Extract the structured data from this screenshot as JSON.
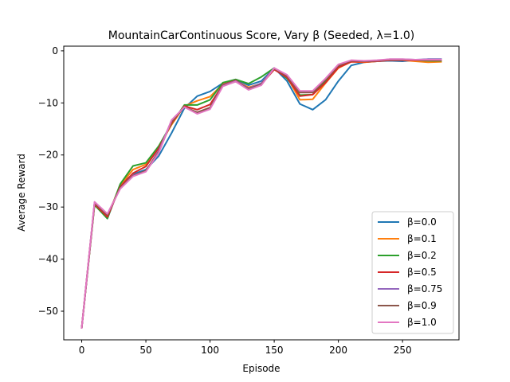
{
  "chart_data": {
    "type": "line",
    "title": "MountainCarContinuous Score, Vary β (Seeded, λ=1.0)",
    "xlabel": "Episode",
    "ylabel": "Average Reward",
    "xlim": [
      -14,
      294
    ],
    "ylim": [
      -55.5,
      0.9
    ],
    "xticks": [
      0,
      50,
      100,
      150,
      200,
      250
    ],
    "yticks": [
      0,
      -10,
      -20,
      -30,
      -40,
      -50
    ],
    "xtick_labels": [
      "0",
      "50",
      "100",
      "150",
      "200",
      "250"
    ],
    "ytick_labels": [
      "0",
      "−10",
      "−20",
      "−30",
      "−40",
      "−50"
    ],
    "grid": false,
    "legend_position": "lower-right",
    "x": [
      0,
      10,
      20,
      30,
      40,
      50,
      60,
      70,
      80,
      90,
      100,
      110,
      120,
      130,
      140,
      150,
      160,
      170,
      180,
      190,
      200,
      210,
      220,
      230,
      240,
      250,
      260,
      270,
      280
    ],
    "series": [
      {
        "name": "β=0.0",
        "color": "#1f77b4",
        "values": [
          -53.2,
          -29.3,
          -32.2,
          -25.7,
          -23.7,
          -22.8,
          -20.2,
          -15.8,
          -11.0,
          -8.7,
          -7.8,
          -6.2,
          -5.5,
          -6.6,
          -5.8,
          -3.3,
          -5.8,
          -10.2,
          -11.3,
          -9.4,
          -5.8,
          -2.8,
          -2.2,
          -2.0,
          -1.9,
          -2.0,
          -1.8,
          -1.6,
          -1.6
        ]
      },
      {
        "name": "β=0.1",
        "color": "#ff7f0e",
        "values": [
          -53.2,
          -29.3,
          -31.8,
          -25.8,
          -22.8,
          -21.8,
          -18.5,
          -14.2,
          -10.6,
          -9.6,
          -8.8,
          -6.4,
          -5.8,
          -7.0,
          -6.3,
          -3.4,
          -5.0,
          -9.4,
          -9.3,
          -6.2,
          -3.3,
          -2.1,
          -2.2,
          -2.0,
          -1.8,
          -1.8,
          -2.0,
          -2.2,
          -2.1
        ]
      },
      {
        "name": "β=0.2",
        "color": "#2ca02c",
        "values": [
          -53.2,
          -29.6,
          -32.2,
          -25.6,
          -22.1,
          -21.5,
          -18.3,
          -14.0,
          -10.4,
          -10.4,
          -9.4,
          -6.1,
          -5.5,
          -6.3,
          -5.0,
          -3.3,
          -5.3,
          -8.5,
          -8.4,
          -5.8,
          -3.0,
          -1.9,
          -2.0,
          -1.9,
          -1.7,
          -1.7,
          -1.8,
          -1.9,
          -1.9
        ]
      },
      {
        "name": "β=0.5",
        "color": "#d62728",
        "values": [
          -53.2,
          -29.4,
          -31.9,
          -26.1,
          -23.5,
          -22.2,
          -18.7,
          -13.9,
          -10.6,
          -11.3,
          -10.3,
          -6.5,
          -5.7,
          -7.2,
          -6.4,
          -3.6,
          -5.1,
          -8.7,
          -8.4,
          -6.1,
          -3.2,
          -2.1,
          -2.1,
          -2.0,
          -1.8,
          -1.8,
          -1.8,
          -1.8,
          -1.8
        ]
      },
      {
        "name": "β=0.75",
        "color": "#9467bd",
        "values": [
          -53.2,
          -29.1,
          -31.4,
          -26.4,
          -23.9,
          -23.1,
          -19.2,
          -13.4,
          -10.8,
          -11.9,
          -10.9,
          -6.6,
          -5.8,
          -7.2,
          -6.2,
          -3.3,
          -4.8,
          -7.8,
          -7.8,
          -5.4,
          -2.7,
          -1.9,
          -2.0,
          -1.9,
          -1.6,
          -1.6,
          -1.7,
          -1.6,
          -1.6
        ]
      },
      {
        "name": "β=0.9",
        "color": "#8c564b",
        "values": [
          -53.2,
          -29.2,
          -31.5,
          -26.3,
          -24.0,
          -23.0,
          -19.4,
          -13.6,
          -10.8,
          -11.8,
          -10.9,
          -6.7,
          -5.9,
          -7.3,
          -6.4,
          -3.4,
          -4.8,
          -8.0,
          -8.0,
          -5.5,
          -2.8,
          -1.9,
          -2.0,
          -1.9,
          -1.7,
          -1.7,
          -1.7,
          -1.8,
          -1.8
        ]
      },
      {
        "name": "β=1.0",
        "color": "#e377c2",
        "values": [
          -53.2,
          -29.0,
          -31.3,
          -26.5,
          -24.1,
          -23.2,
          -19.6,
          -13.3,
          -10.8,
          -12.1,
          -11.2,
          -6.8,
          -5.9,
          -7.5,
          -6.6,
          -3.3,
          -4.6,
          -7.7,
          -7.7,
          -5.3,
          -2.6,
          -1.8,
          -1.9,
          -1.8,
          -1.6,
          -1.6,
          -1.7,
          -1.7,
          -1.7
        ]
      }
    ]
  }
}
